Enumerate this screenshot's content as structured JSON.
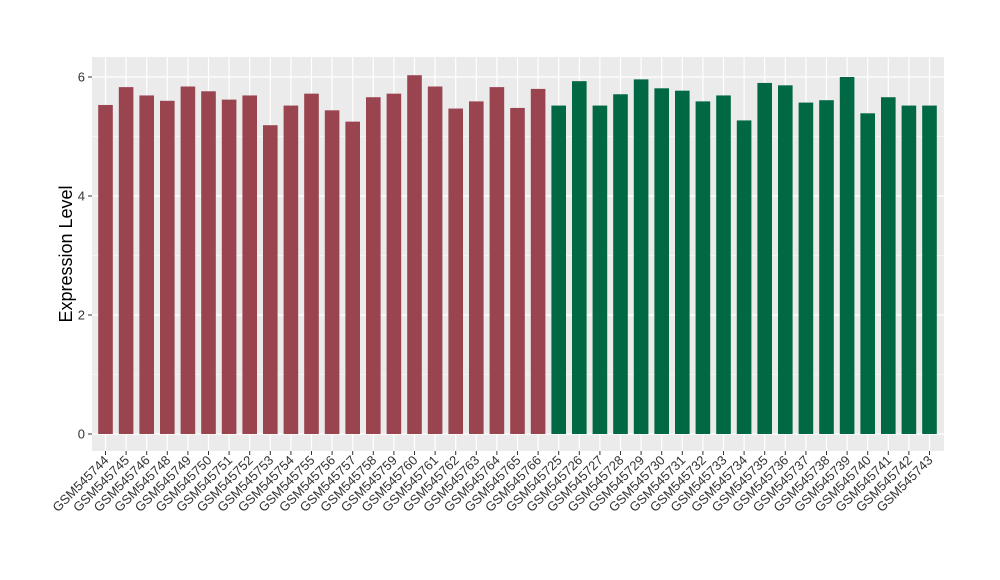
{
  "chart_data": {
    "type": "bar",
    "title": "",
    "xlabel": "",
    "ylabel": "Expression Level",
    "ylim": [
      0,
      6.15
    ],
    "yticks": [
      0,
      2,
      4,
      6
    ],
    "grid": true,
    "legend": "none",
    "colors": {
      "group1": "#9a4450",
      "group2": "#006843",
      "panel": "#ebebeb",
      "grid": "#ffffff"
    },
    "categories": [
      "GSM545744",
      "GSM545745",
      "GSM545746",
      "GSM545748",
      "GSM545749",
      "GSM545750",
      "GSM545751",
      "GSM545752",
      "GSM545753",
      "GSM545754",
      "GSM545755",
      "GSM545756",
      "GSM545757",
      "GSM545758",
      "GSM545759",
      "GSM545760",
      "GSM545761",
      "GSM545762",
      "GSM545763",
      "GSM545764",
      "GSM545765",
      "GSM545766",
      "GSM545725",
      "GSM545726",
      "GSM545727",
      "GSM545728",
      "GSM545729",
      "GSM545730",
      "GSM545731",
      "GSM545732",
      "GSM545733",
      "GSM545734",
      "GSM545735",
      "GSM545736",
      "GSM545737",
      "GSM545738",
      "GSM545739",
      "GSM545740",
      "GSM545741",
      "GSM545742",
      "GSM545743"
    ],
    "values": [
      5.53,
      5.83,
      5.69,
      5.6,
      5.84,
      5.76,
      5.62,
      5.69,
      5.19,
      5.52,
      5.72,
      5.44,
      5.25,
      5.66,
      5.72,
      6.03,
      5.84,
      5.47,
      5.59,
      5.83,
      5.48,
      5.8,
      5.52,
      5.93,
      5.52,
      5.71,
      5.96,
      5.81,
      5.77,
      5.59,
      5.69,
      5.27,
      5.9,
      5.86,
      5.57,
      5.61,
      6.0,
      5.39,
      5.66,
      5.52,
      5.52
    ],
    "group": [
      1,
      1,
      1,
      1,
      1,
      1,
      1,
      1,
      1,
      1,
      1,
      1,
      1,
      1,
      1,
      1,
      1,
      1,
      1,
      1,
      1,
      1,
      2,
      2,
      2,
      2,
      2,
      2,
      2,
      2,
      2,
      2,
      2,
      2,
      2,
      2,
      2,
      2,
      2,
      2,
      2
    ]
  }
}
